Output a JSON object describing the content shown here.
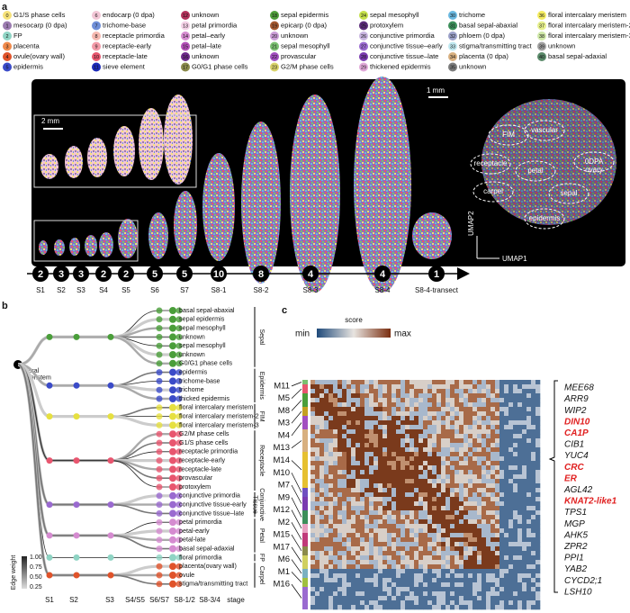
{
  "panels": {
    "a": "a",
    "b": "b",
    "c": "c"
  },
  "legend": [
    {
      "num": "0",
      "label": "G1/S phase cells",
      "color": "#f6e27a"
    },
    {
      "num": "1",
      "label": "mesocarp (0 dpa)",
      "color": "#9b7bb0"
    },
    {
      "num": "2",
      "label": "FP",
      "color": "#8fd4c4"
    },
    {
      "num": "3",
      "label": "placenta",
      "color": "#f08a4b"
    },
    {
      "num": "4",
      "label": "ovule(ovary wall)",
      "color": "#e0532a"
    },
    {
      "num": "5",
      "label": "epidermis",
      "color": "#3b4bc8"
    },
    {
      "num": "6",
      "label": "endocarp (0 dpa)",
      "color": "#f2c6d6"
    },
    {
      "num": "7",
      "label": "trichome-base",
      "color": "#6f8fd8"
    },
    {
      "num": "8",
      "label": "receptacle primordia",
      "color": "#f5b8b0"
    },
    {
      "num": "9",
      "label": "receptacle-early",
      "color": "#f29aa8"
    },
    {
      "num": "10",
      "label": "receptacle-late",
      "color": "#e8566f"
    },
    {
      "num": "11",
      "label": "sieve element",
      "color": "#1c2ab8"
    },
    {
      "num": "12",
      "label": "unknown",
      "color": "#b2305a"
    },
    {
      "num": "13",
      "label": "petal primordia",
      "color": "#f3d0e6"
    },
    {
      "num": "14",
      "label": "petal–early",
      "color": "#d58bd0"
    },
    {
      "num": "15",
      "label": "petal–late",
      "color": "#b34fb8"
    },
    {
      "num": "16",
      "label": "unknown",
      "color": "#6d2a8a"
    },
    {
      "num": "17",
      "label": "G0/G1 phase cells",
      "color": "#8a8a4a"
    },
    {
      "num": "18",
      "label": "sepal epidermis",
      "color": "#4f9e3a"
    },
    {
      "num": "19",
      "label": "epicarp (0 dpa)",
      "color": "#a3572e"
    },
    {
      "num": "20",
      "label": "unknown",
      "color": "#c99bd6"
    },
    {
      "num": "21",
      "label": "sepal mesophyll",
      "color": "#7ac070"
    },
    {
      "num": "22",
      "label": "provascular",
      "color": "#a24fc0"
    },
    {
      "num": "23",
      "label": "G2/M phase cells",
      "color": "#d9d36a"
    },
    {
      "num": "24",
      "label": "sepal mesophyll",
      "color": "#c4e04a"
    },
    {
      "num": "25",
      "label": "protoxylem",
      "color": "#5a2b7a"
    },
    {
      "num": "26",
      "label": "conjunctive primordia",
      "color": "#c8b4e0"
    },
    {
      "num": "27",
      "label": "conjunctive tissue–early",
      "color": "#9a6ad0"
    },
    {
      "num": "28",
      "label": "conjunctive tissue–late",
      "color": "#7a3ab0"
    },
    {
      "num": "29",
      "label": "thickened epidermis",
      "color": "#e0a8d8"
    },
    {
      "num": "30",
      "label": "trichome",
      "color": "#6ab8e0"
    },
    {
      "num": "31",
      "label": "basal sepal-abaxial",
      "color": "#3c8f5a"
    },
    {
      "num": "32",
      "label": "phloem (0 dpa)",
      "color": "#9aa0c8"
    },
    {
      "num": "33",
      "label": "stigma/transmitting tract",
      "color": "#bfe8f0"
    },
    {
      "num": "34",
      "label": "placenta (0 dpa)",
      "color": "#d8b080"
    },
    {
      "num": "35",
      "label": "unknown",
      "color": "#7c7c7c"
    },
    {
      "num": "36",
      "label": "floral intercalary meristem",
      "color": "#f4ec60"
    },
    {
      "num": "37",
      "label": "floral intercalary meristem-2",
      "color": "#e6f08c"
    },
    {
      "num": "38",
      "label": "floral intercalary meristem-3",
      "color": "#cfe8a8"
    },
    {
      "num": "39",
      "label": "unknown",
      "color": "#a0a0a0"
    },
    {
      "num": "40",
      "label": "basal sepal-adaxial",
      "color": "#5a8a6a"
    }
  ],
  "panel_a": {
    "scale_large": "2 mm",
    "scale_small": "1 mm",
    "umap_labels": [
      "FIM",
      "vascular",
      "receptacle",
      "petal",
      "0DPA\novary",
      "carpel",
      "sepal",
      "epidermis"
    ],
    "umap_x": "UMAP1",
    "umap_y": "UMAP2",
    "stages": [
      {
        "count": "2",
        "label": "S1"
      },
      {
        "count": "3",
        "label": "S2"
      },
      {
        "count": "3",
        "label": "S3"
      },
      {
        "count": "2",
        "label": "S4"
      },
      {
        "count": "2",
        "label": "S5"
      },
      {
        "count": "5",
        "label": "S6"
      },
      {
        "count": "5",
        "label": "S7"
      },
      {
        "count": "10",
        "label": "S8-1"
      },
      {
        "count": "8",
        "label": "S8-2"
      },
      {
        "count": "4",
        "label": "S8-3"
      },
      {
        "count": "4",
        "label": "S8-4"
      },
      {
        "count": "1",
        "label": "S8-4-transect"
      }
    ]
  },
  "panel_b": {
    "root": "floral\nmeristem",
    "nodes": [
      "basal sepal-abaxial",
      "sepal epidermis",
      "sepal mesophyll",
      "unknown",
      "sepal mesophyll",
      "unknown",
      "G0/G1 phase cells",
      "epidermis",
      "trichome-base",
      "trichome",
      "thicked epidermis",
      "floral intercalary meristem",
      "floral intercalary meristem-2",
      "floral intercalary meristem-3",
      "G2/M phase cells",
      "G1/S phase cells",
      "receptacle primordia",
      "receptacle-early",
      "receptacle-late",
      "provascular",
      "protoxylem",
      "conjunctive primordia",
      "conjunctive tissue-early",
      "conjunctive tissue–late",
      "petal primordia",
      "petal-early",
      "petal-late",
      "basal sepal-adaxial",
      "floral primordia",
      "placenta(ovary wall)",
      "ovule",
      "stigma/transmitting tract"
    ],
    "groups": [
      {
        "label": "Sepal",
        "from": 0,
        "to": 6
      },
      {
        "label": "Epidermis",
        "from": 7,
        "to": 10
      },
      {
        "label": "FIM",
        "from": 11,
        "to": 13
      },
      {
        "label": "Receptacle",
        "from": 14,
        "to": 20
      },
      {
        "label": "Conjunctive\nTissue",
        "from": 21,
        "to": 23
      },
      {
        "label": "Petal",
        "from": 24,
        "to": 27
      },
      {
        "label": "FP",
        "from": 28,
        "to": 28
      },
      {
        "label": "Carpel",
        "from": 29,
        "to": 31
      }
    ],
    "stages": [
      "S1",
      "S2",
      "S3",
      "S4/S5",
      "S6/S7",
      "S8-1/2",
      "S8-3/4",
      "stage"
    ],
    "edge_title": "Edge weight",
    "edge_ticks": [
      "1.00",
      "0.75",
      "0.50",
      "0.25"
    ]
  },
  "panel_c": {
    "score": "score",
    "min": "min",
    "max": "max",
    "modules": [
      "M11",
      "M5",
      "M8",
      "M3",
      "M4",
      "M13",
      "M14",
      "M10",
      "M7",
      "M9",
      "M12",
      "M2",
      "M15",
      "M17",
      "M6",
      "M1",
      "M16"
    ],
    "genes": [
      {
        "name": "MEE68",
        "red": false
      },
      {
        "name": "ARR9",
        "red": false
      },
      {
        "name": "WIP2",
        "red": false
      },
      {
        "name": "DIN10",
        "red": true
      },
      {
        "name": "CA1P",
        "red": true
      },
      {
        "name": "CIB1",
        "red": false
      },
      {
        "name": "YUC4",
        "red": false
      },
      {
        "name": "CRC",
        "red": true
      },
      {
        "name": "ER",
        "red": true
      },
      {
        "name": "AGL42",
        "red": false
      },
      {
        "name": "KNAT2-like1",
        "red": true
      },
      {
        "name": "TPS1",
        "red": false
      },
      {
        "name": "MGP",
        "red": false
      },
      {
        "name": "AHK5",
        "red": false
      },
      {
        "name": "ZPR2",
        "red": false
      },
      {
        "name": "PPI1",
        "red": false
      },
      {
        "name": "YAB2",
        "red": false
      },
      {
        "name": "CYCD2;1",
        "red": false
      },
      {
        "name": "LSH10",
        "red": false
      }
    ]
  }
}
